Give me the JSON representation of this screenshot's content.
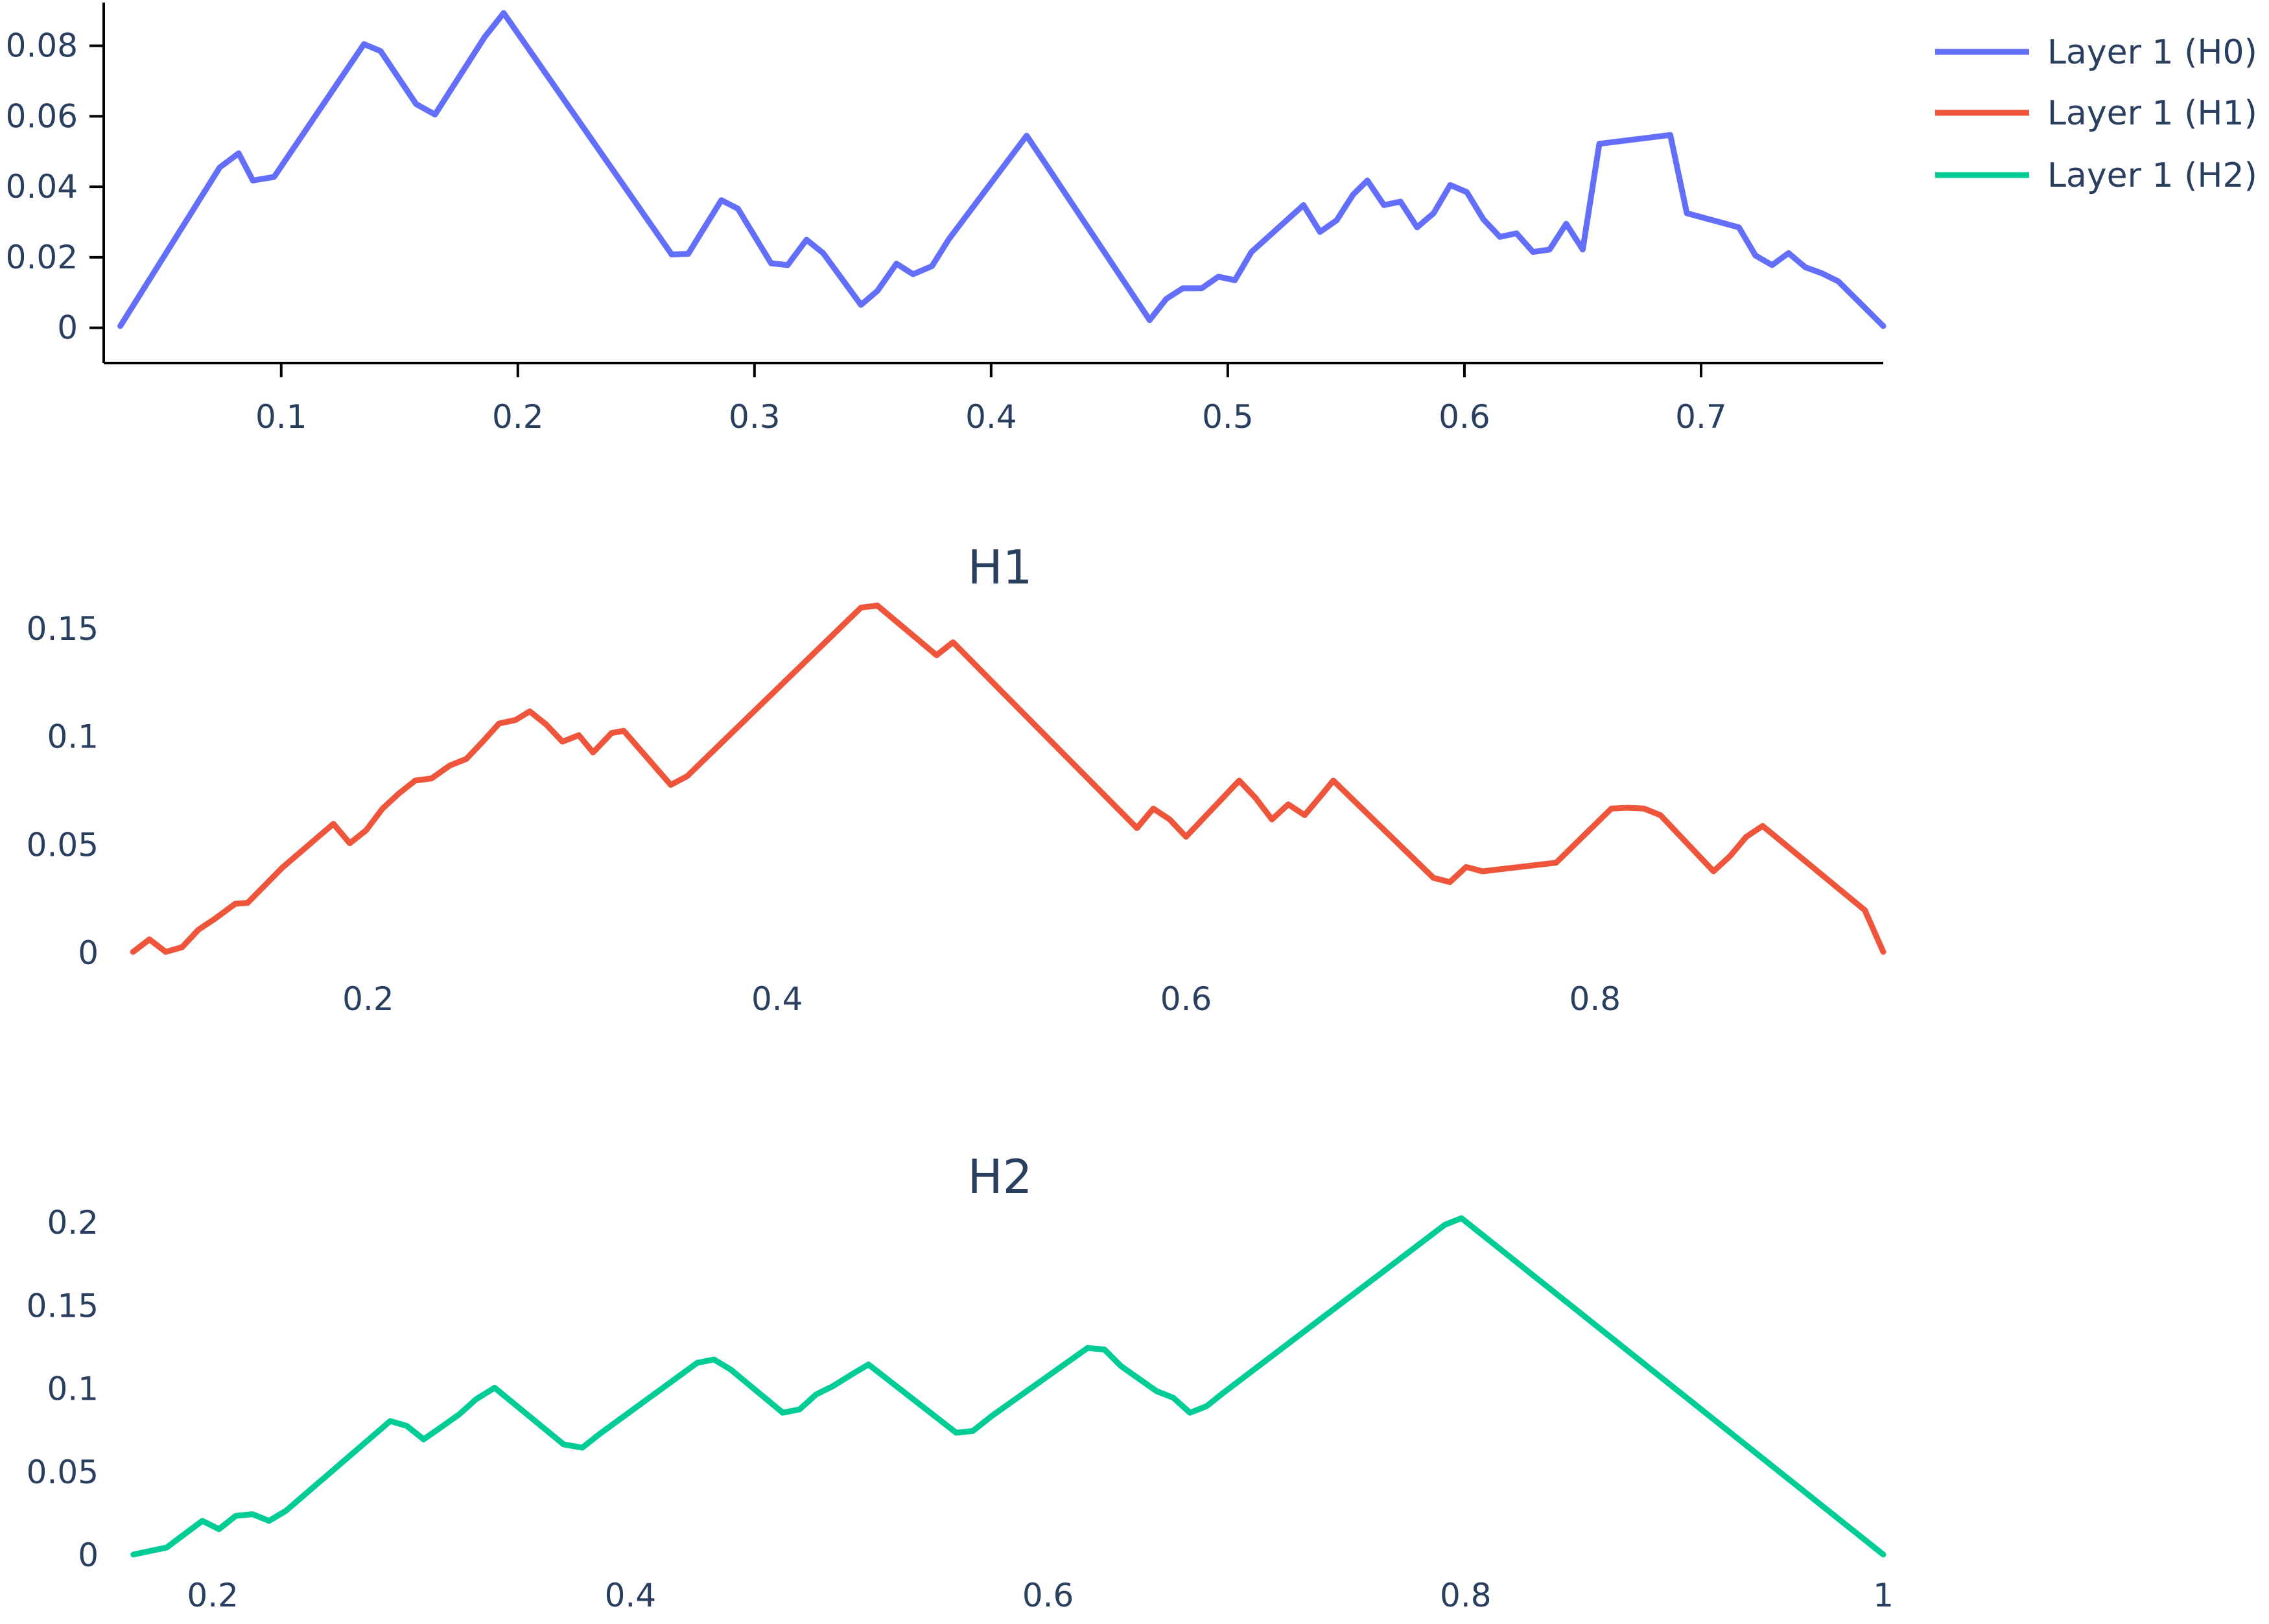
{
  "chart_data": [
    {
      "type": "line",
      "title": "",
      "xlabel": "",
      "ylabel": "",
      "xlim": [
        0.025,
        0.777
      ],
      "ylim": [
        -0.01,
        0.093
      ],
      "x_ticks": [
        {
          "v": 0.1,
          "label": "0.1"
        },
        {
          "v": 0.2,
          "label": "0.2"
        },
        {
          "v": 0.3,
          "label": "0.3"
        },
        {
          "v": 0.4,
          "label": "0.4"
        },
        {
          "v": 0.5,
          "label": "0.5"
        },
        {
          "v": 0.6,
          "label": "0.6"
        },
        {
          "v": 0.7,
          "label": "0.7"
        }
      ],
      "y_ticks": [
        {
          "v": 0,
          "label": "0"
        },
        {
          "v": 0.02,
          "label": "0.02"
        },
        {
          "v": 0.04,
          "label": "0.04"
        },
        {
          "v": 0.06,
          "label": "0.06"
        },
        {
          "v": 0.08,
          "label": "0.08"
        }
      ],
      "show_axis_lines": true,
      "series": [
        {
          "name": "Layer 1 (H0)",
          "color": "#636efa",
          "x": [
            0.032,
            0.074,
            0.082,
            0.088,
            0.097,
            0.135,
            0.142,
            0.157,
            0.165,
            0.186,
            0.194,
            0.265,
            0.272,
            0.286,
            0.293,
            0.307,
            0.314,
            0.322,
            0.329,
            0.345,
            0.352,
            0.36,
            0.367,
            0.375,
            0.382,
            0.415,
            0.422,
            0.467,
            0.474,
            0.481,
            0.489,
            0.496,
            0.503,
            0.51,
            0.532,
            0.539,
            0.546,
            0.553,
            0.559,
            0.566,
            0.573,
            0.58,
            0.587,
            0.594,
            0.601,
            0.608,
            0.615,
            0.622,
            0.629,
            0.636,
            0.643,
            0.65,
            0.657,
            0.687,
            0.694,
            0.716,
            0.723,
            0.73,
            0.737,
            0.744,
            0.751,
            0.758,
            0.777
          ],
          "y": [
            0.0005,
            0.0455,
            0.0495,
            0.0418,
            0.0428,
            0.0805,
            0.0785,
            0.0635,
            0.0605,
            0.0825,
            0.0893,
            0.0208,
            0.021,
            0.0362,
            0.0338,
            0.0183,
            0.0178,
            0.025,
            0.0212,
            0.0065,
            0.0105,
            0.0182,
            0.0152,
            0.0175,
            0.025,
            0.0545,
            0.0475,
            0.0022,
            0.0082,
            0.0112,
            0.0112,
            0.0145,
            0.0135,
            0.0215,
            0.0348,
            0.0272,
            0.0305,
            0.0378,
            0.0418,
            0.0348,
            0.0358,
            0.0285,
            0.0325,
            0.0405,
            0.0385,
            0.0308,
            0.0258,
            0.0268,
            0.0215,
            0.0222,
            0.0295,
            0.0222,
            0.0522,
            0.0547,
            0.0325,
            0.0285,
            0.0205,
            0.0178,
            0.0212,
            0.0172,
            0.0155,
            0.0132,
            0.0005
          ]
        }
      ]
    },
    {
      "type": "line",
      "title": "H1",
      "xlabel": "",
      "ylabel": "",
      "xlim": [
        0.077,
        0.941
      ],
      "ylim": [
        -0.015,
        0.165
      ],
      "x_ticks": [
        {
          "v": 0.2,
          "label": "0.2"
        },
        {
          "v": 0.4,
          "label": "0.4"
        },
        {
          "v": 0.6,
          "label": "0.6"
        },
        {
          "v": 0.8,
          "label": "0.8"
        }
      ],
      "y_ticks": [
        {
          "v": 0,
          "label": "0"
        },
        {
          "v": 0.05,
          "label": "0.05"
        },
        {
          "v": 0.1,
          "label": "0.1"
        },
        {
          "v": 0.15,
          "label": "0.15"
        }
      ],
      "show_axis_lines": false,
      "series": [
        {
          "name": "Layer 1 (H1)",
          "color": "#ef553b",
          "x": [
            0.085,
            0.093,
            0.101,
            0.109,
            0.117,
            0.125,
            0.135,
            0.141,
            0.158,
            0.183,
            0.191,
            0.199,
            0.207,
            0.215,
            0.223,
            0.231,
            0.24,
            0.248,
            0.256,
            0.264,
            0.272,
            0.279,
            0.287,
            0.295,
            0.303,
            0.31,
            0.319,
            0.325,
            0.348,
            0.356,
            0.441,
            0.449,
            0.478,
            0.486,
            0.576,
            0.584,
            0.592,
            0.6,
            0.626,
            0.634,
            0.642,
            0.65,
            0.658,
            0.666,
            0.672,
            0.721,
            0.729,
            0.737,
            0.745,
            0.781,
            0.808,
            0.816,
            0.824,
            0.832,
            0.858,
            0.866,
            0.874,
            0.882,
            0.932,
            0.941
          ],
          "y": [
            0.0005,
            0.0063,
            0.0005,
            0.0027,
            0.0108,
            0.0158,
            0.0228,
            0.0232,
            0.0395,
            0.0598,
            0.0508,
            0.0568,
            0.0668,
            0.0738,
            0.0798,
            0.0808,
            0.0868,
            0.0898,
            0.0978,
            0.1062,
            0.1078,
            0.1118,
            0.1058,
            0.0978,
            0.1008,
            0.0928,
            0.1018,
            0.1028,
            0.0778,
            0.0818,
            0.1598,
            0.1608,
            0.1378,
            0.1438,
            0.0578,
            0.0668,
            0.0618,
            0.0538,
            0.0798,
            0.0718,
            0.0618,
            0.0688,
            0.0638,
            0.0728,
            0.0798,
            0.0348,
            0.0328,
            0.0398,
            0.0378,
            0.0418,
            0.0668,
            0.0672,
            0.0668,
            0.0638,
            0.0378,
            0.0448,
            0.0538,
            0.0588,
            0.0198,
            0.0005
          ]
        }
      ]
    },
    {
      "type": "line",
      "title": "H2",
      "xlabel": "",
      "ylabel": "",
      "xlim": [
        0.154,
        1.0
      ],
      "ylim": [
        -0.012,
        0.218
      ],
      "x_ticks": [
        {
          "v": 0.2,
          "label": "0.2"
        },
        {
          "v": 0.4,
          "label": "0.4"
        },
        {
          "v": 0.6,
          "label": "0.6"
        },
        {
          "v": 0.8,
          "label": "0.8"
        },
        {
          "v": 1.0,
          "label": "1"
        }
      ],
      "y_ticks": [
        {
          "v": 0,
          "label": "0"
        },
        {
          "v": 0.05,
          "label": "0.05"
        },
        {
          "v": 0.1,
          "label": "0.1"
        },
        {
          "v": 0.15,
          "label": "0.15"
        },
        {
          "v": 0.2,
          "label": "0.2"
        }
      ],
      "show_axis_lines": false,
      "series": [
        {
          "name": "Layer 1 (H2)",
          "color": "#00cc96",
          "x": [
            0.162,
            0.178,
            0.195,
            0.203,
            0.211,
            0.219,
            0.227,
            0.235,
            0.285,
            0.293,
            0.301,
            0.309,
            0.318,
            0.326,
            0.335,
            0.368,
            0.377,
            0.385,
            0.432,
            0.44,
            0.448,
            0.473,
            0.481,
            0.489,
            0.497,
            0.506,
            0.514,
            0.556,
            0.564,
            0.573,
            0.619,
            0.627,
            0.635,
            0.652,
            0.66,
            0.668,
            0.676,
            0.684,
            0.79,
            0.798,
            1.0
          ],
          "y": [
            0.0005,
            0.0048,
            0.0208,
            0.0158,
            0.0238,
            0.0248,
            0.0208,
            0.0268,
            0.0808,
            0.0778,
            0.0698,
            0.0768,
            0.0848,
            0.0938,
            0.1008,
            0.0668,
            0.0648,
            0.0728,
            0.1158,
            0.1178,
            0.1118,
            0.0858,
            0.0878,
            0.0968,
            0.1018,
            0.1088,
            0.1148,
            0.0738,
            0.0748,
            0.0838,
            0.1248,
            0.1238,
            0.1138,
            0.0988,
            0.0948,
            0.0858,
            0.0898,
            0.0978,
            0.1988,
            0.2028,
            0.0005
          ]
        }
      ]
    }
  ],
  "legend": {
    "placement": "top-right",
    "entries": [
      {
        "label": "Layer 1 (H0)",
        "color": "#636efa"
      },
      {
        "label": "Layer 1 (H1)",
        "color": "#ef553b"
      },
      {
        "label": "Layer 1 (H2)",
        "color": "#00cc96"
      }
    ]
  }
}
